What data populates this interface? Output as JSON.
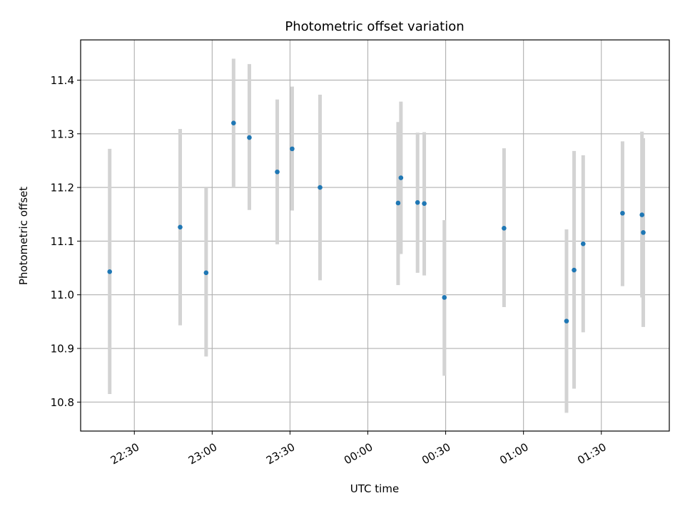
{
  "chart_data": {
    "type": "scatter",
    "title": "Photometric offset variation",
    "xlabel": "UTC time",
    "ylabel": "Photometric offset",
    "x_tick_labels": [
      "22:30",
      "23:00",
      "23:30",
      "00:00",
      "00:30",
      "01:00",
      "01:30"
    ],
    "y_tick_labels": [
      "10.8",
      "10.9",
      "11.0",
      "11.1",
      "11.2",
      "11.3",
      "11.4"
    ],
    "x_ticks_min_since_2200": [
      30,
      60,
      90,
      120,
      150,
      180,
      210
    ],
    "y_ticks": [
      10.8,
      10.9,
      11.0,
      11.1,
      11.2,
      11.3,
      11.4
    ],
    "xlim_min_since_2200": [
      9.3,
      236.2
    ],
    "ylim": [
      10.746,
      11.475
    ],
    "grid": true,
    "point_color": "#1f77b4",
    "errorbar_color": "#d3d3d3",
    "points": [
      {
        "t": "22:20:30",
        "y": 11.043,
        "err_low": 10.815,
        "err_high": 11.272
      },
      {
        "t": "22:47:40",
        "y": 11.126,
        "err_low": 10.943,
        "err_high": 11.309
      },
      {
        "t": "22:57:40",
        "y": 11.041,
        "err_low": 10.885,
        "err_high": 11.2
      },
      {
        "t": "23:08:15",
        "y": 11.32,
        "err_low": 11.2,
        "err_high": 11.44
      },
      {
        "t": "23:14:20",
        "y": 11.293,
        "err_low": 11.158,
        "err_high": 11.43
      },
      {
        "t": "23:25:05",
        "y": 11.229,
        "err_low": 11.094,
        "err_high": 11.364
      },
      {
        "t": "23:30:50",
        "y": 11.272,
        "err_low": 11.157,
        "err_high": 11.388
      },
      {
        "t": "23:41:35",
        "y": 11.2,
        "err_low": 11.027,
        "err_high": 11.373
      },
      {
        "t": "00:11:40",
        "y": 11.171,
        "err_low": 11.018,
        "err_high": 11.322
      },
      {
        "t": "00:12:45",
        "y": 11.218,
        "err_low": 11.076,
        "err_high": 11.36
      },
      {
        "t": "00:19:10",
        "y": 11.172,
        "err_low": 11.041,
        "err_high": 11.302
      },
      {
        "t": "00:21:45",
        "y": 11.17,
        "err_low": 11.036,
        "err_high": 11.303
      },
      {
        "t": "00:29:30",
        "y": 10.995,
        "err_low": 10.849,
        "err_high": 11.139
      },
      {
        "t": "00:52:30",
        "y": 11.124,
        "err_low": 10.977,
        "err_high": 11.273
      },
      {
        "t": "01:16:35",
        "y": 10.951,
        "err_low": 10.78,
        "err_high": 11.122
      },
      {
        "t": "01:19:30",
        "y": 11.046,
        "err_low": 10.825,
        "err_high": 11.268
      },
      {
        "t": "01:23:00",
        "y": 11.095,
        "err_low": 10.93,
        "err_high": 11.26
      },
      {
        "t": "01:38:10",
        "y": 11.152,
        "err_low": 11.016,
        "err_high": 11.286
      },
      {
        "t": "01:45:40",
        "y": 11.149,
        "err_low": 10.995,
        "err_high": 11.304
      },
      {
        "t": "01:46:10",
        "y": 11.116,
        "err_low": 10.94,
        "err_high": 11.292
      }
    ]
  }
}
